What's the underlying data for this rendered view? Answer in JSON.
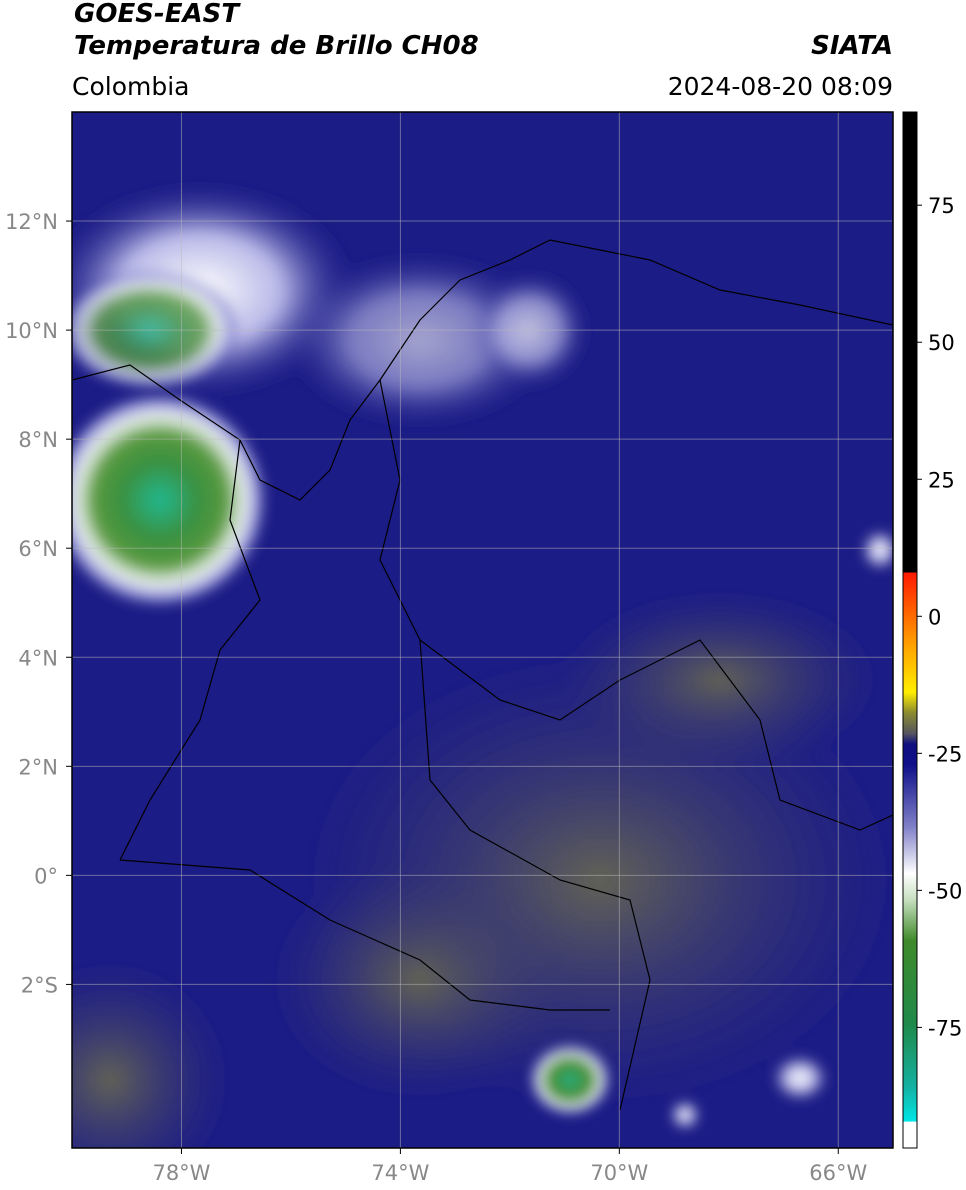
{
  "header": {
    "satellite": "GOES-EAST",
    "product": "Temperatura de Brillo CH08",
    "source": "SIATA",
    "region": "Colombia",
    "datetime": "2024-08-20 08:09"
  },
  "map": {
    "xlim": [
      -80,
      -65
    ],
    "ylim": [
      -5,
      14
    ],
    "xticks": [
      {
        "value": -78,
        "label": "78°W"
      },
      {
        "value": -74,
        "label": "74°W"
      },
      {
        "value": -70,
        "label": "70°W"
      },
      {
        "value": -66,
        "label": "66°W"
      }
    ],
    "yticks": [
      {
        "value": 12,
        "label": "12°N"
      },
      {
        "value": 10,
        "label": "10°N"
      },
      {
        "value": 8,
        "label": "8°N"
      },
      {
        "value": 6,
        "label": "6°N"
      },
      {
        "value": 4,
        "label": "4°N"
      },
      {
        "value": 2,
        "label": "2°N"
      },
      {
        "value": 0,
        "label": "0°"
      },
      {
        "value": -2,
        "label": "2°S"
      }
    ],
    "grid": true
  },
  "colorbar": {
    "clim": [
      -97,
      92
    ],
    "ticks": [
      75,
      50,
      25,
      0,
      -25,
      -50,
      -75
    ]
  }
}
